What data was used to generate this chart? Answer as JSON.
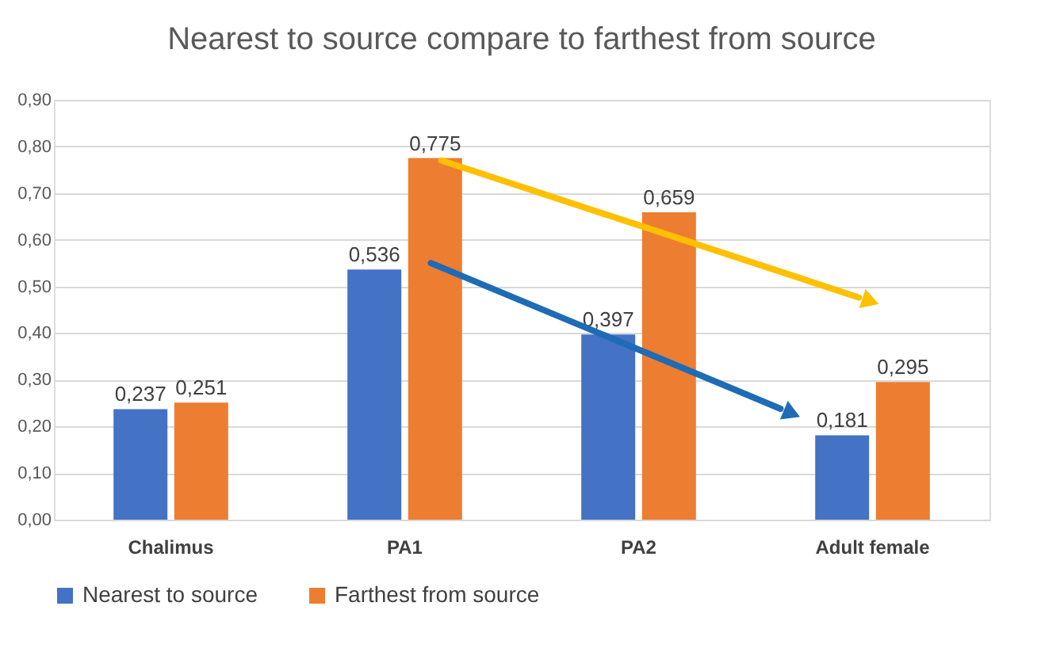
{
  "chart_data": {
    "type": "bar",
    "title": "Nearest to source compare to farthest from source",
    "categories": [
      "Chalimus",
      "PA1",
      "PA2",
      "Adult female"
    ],
    "series": [
      {
        "name": "Nearest to source",
        "color": "#4472c4",
        "values": [
          0.237,
          0.536,
          0.397,
          0.181
        ],
        "value_labels": [
          "0,237",
          "0,536",
          "0,397",
          "0,181"
        ]
      },
      {
        "name": "Farthest from source",
        "color": "#ed7d31",
        "values": [
          0.251,
          0.775,
          0.659,
          0.295
        ],
        "value_labels": [
          "0,251",
          "0,775",
          "0,659",
          "0,295"
        ]
      }
    ],
    "ylim": [
      0,
      0.9
    ],
    "yticks": [
      {
        "value": 0,
        "label": "0,00"
      },
      {
        "value": 0.1,
        "label": "0,10"
      },
      {
        "value": 0.2,
        "label": "0,20"
      },
      {
        "value": 0.3,
        "label": "0,30"
      },
      {
        "value": 0.4,
        "label": "0,40"
      },
      {
        "value": 0.5,
        "label": "0,50"
      },
      {
        "value": 0.6,
        "label": "0,60"
      },
      {
        "value": 0.7,
        "label": "0,70"
      },
      {
        "value": 0.8,
        "label": "0,80"
      },
      {
        "value": 0.9,
        "label": "0,90"
      }
    ],
    "grid": "y",
    "legend": "bottom"
  }
}
